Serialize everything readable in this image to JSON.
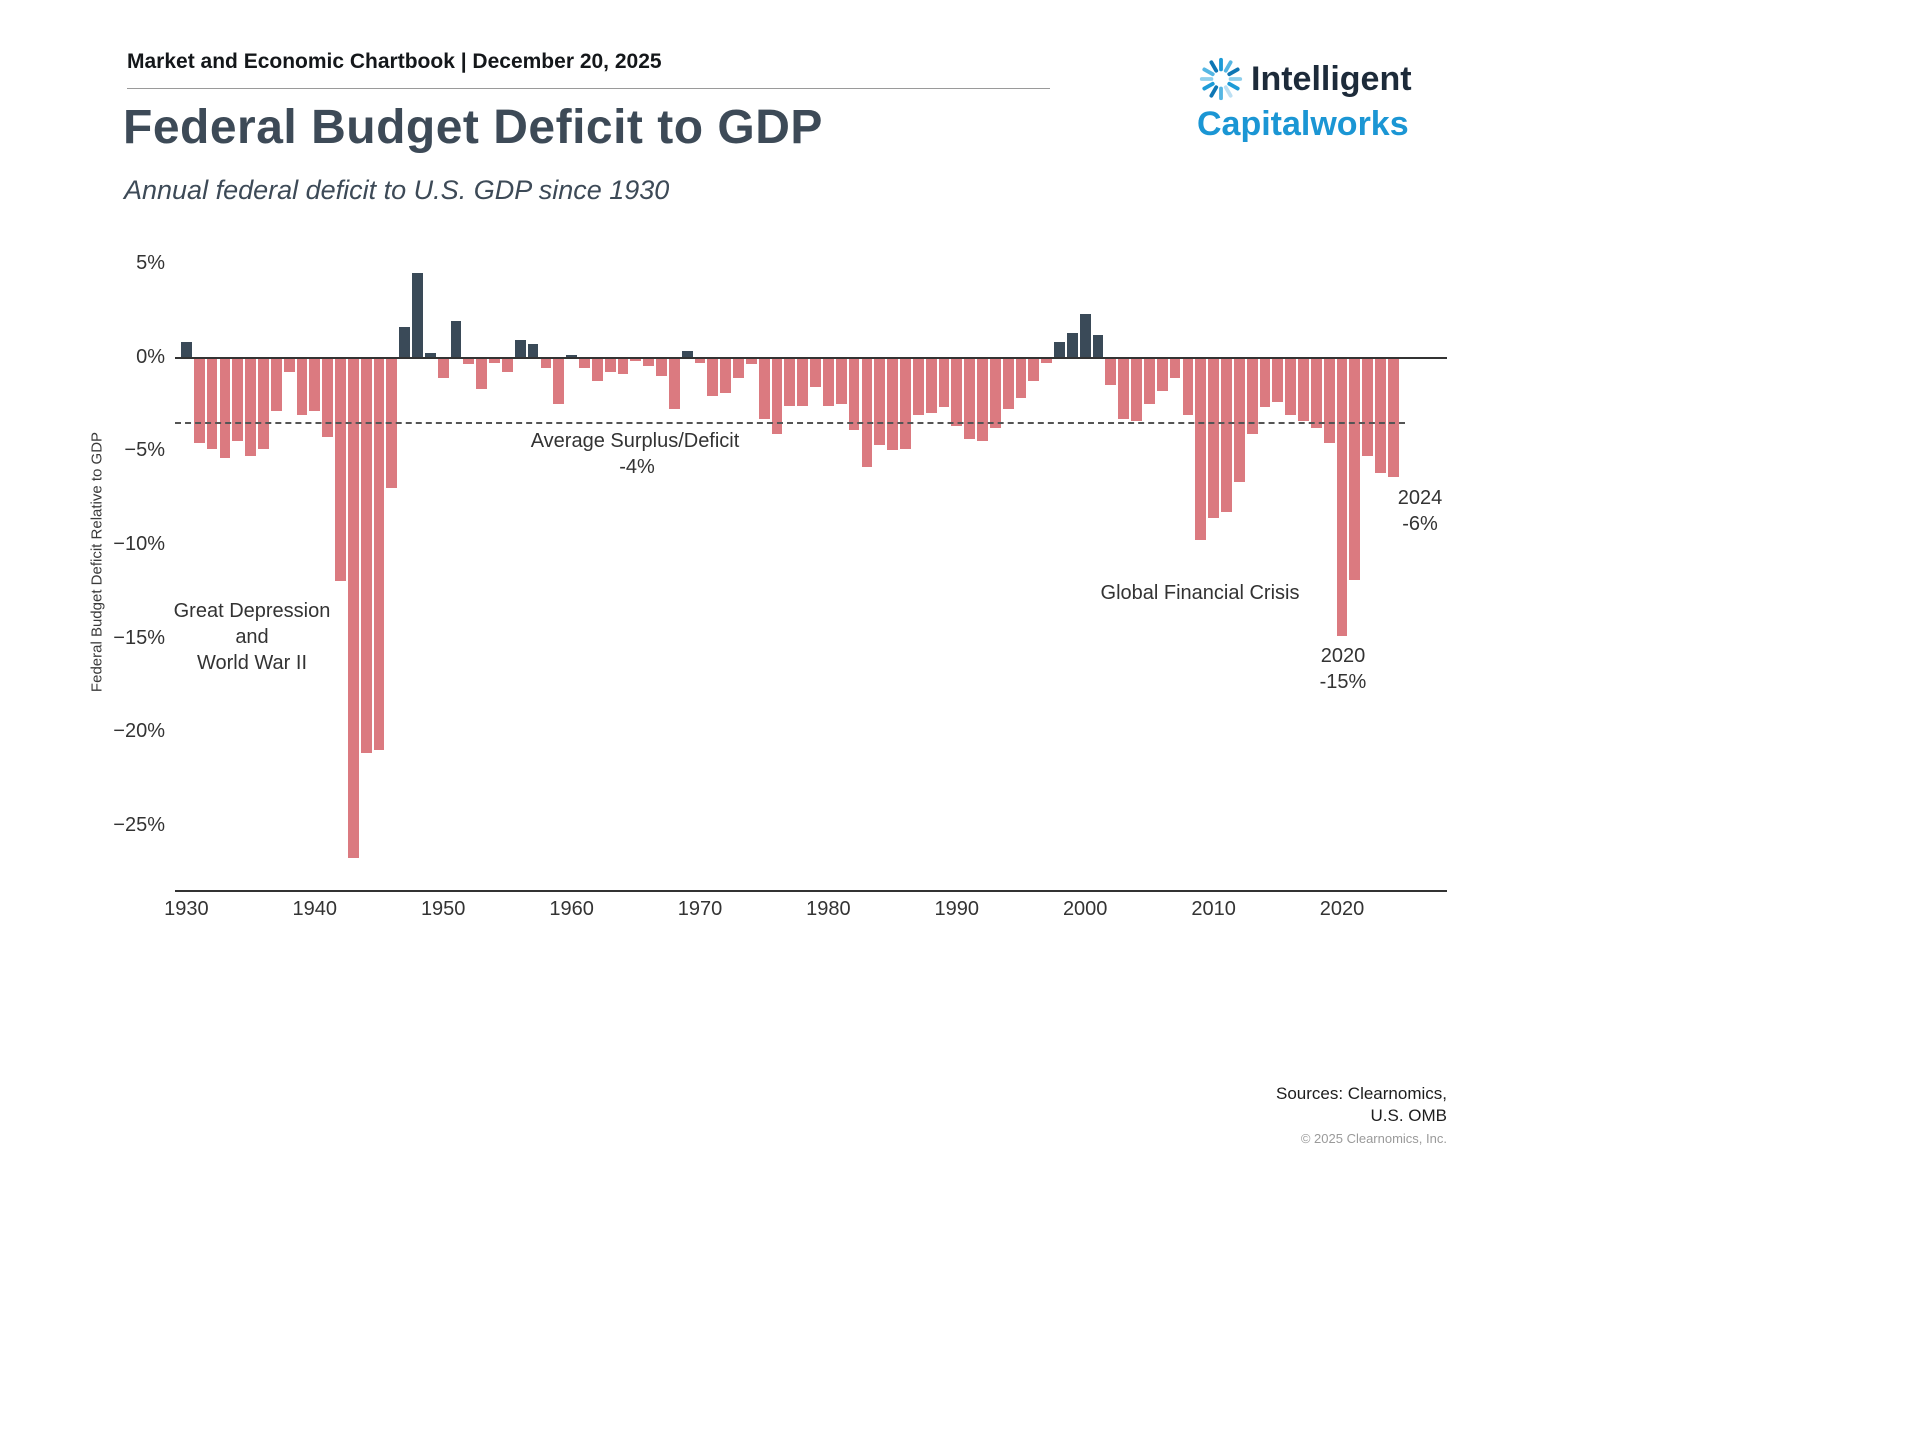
{
  "header": {
    "chartbook": "Market and Economic Chartbook | December 20, 2025",
    "title": "Federal Budget Deficit to GDP",
    "subtitle": "Annual federal deficit to U.S. GDP since 1930"
  },
  "logo": {
    "line1": "Intelligent",
    "line2": "Capitalworks",
    "icon": "starburst-icon"
  },
  "chart_data": {
    "type": "bar",
    "title": "Federal Budget Deficit to GDP",
    "xlabel": "",
    "ylabel": "Federal Budget Deficit Relative to GDP",
    "ylim": [
      -28.5,
      5.56
    ],
    "grid": false,
    "x": [
      1930,
      1931,
      1932,
      1933,
      1934,
      1935,
      1936,
      1937,
      1938,
      1939,
      1940,
      1941,
      1942,
      1943,
      1944,
      1945,
      1946,
      1947,
      1948,
      1949,
      1950,
      1951,
      1952,
      1953,
      1954,
      1955,
      1956,
      1957,
      1958,
      1959,
      1960,
      1961,
      1962,
      1963,
      1964,
      1965,
      1966,
      1967,
      1968,
      1969,
      1970,
      1971,
      1972,
      1973,
      1974,
      1975,
      1976,
      1977,
      1978,
      1979,
      1980,
      1981,
      1982,
      1983,
      1984,
      1985,
      1986,
      1987,
      1988,
      1989,
      1990,
      1991,
      1992,
      1993,
      1994,
      1995,
      1996,
      1997,
      1998,
      1999,
      2000,
      2001,
      2002,
      2003,
      2004,
      2005,
      2006,
      2007,
      2008,
      2009,
      2010,
      2011,
      2012,
      2013,
      2014,
      2015,
      2016,
      2017,
      2018,
      2019,
      2020,
      2021,
      2022,
      2023,
      2024
    ],
    "values": [
      0.8,
      -4.6,
      -4.9,
      -5.4,
      -4.5,
      -5.3,
      -4.9,
      -2.9,
      -0.8,
      -3.1,
      -2.9,
      -4.3,
      -12.0,
      -26.8,
      -21.2,
      -21.0,
      -7.0,
      1.6,
      4.5,
      0.2,
      -1.1,
      1.9,
      -0.4,
      -1.7,
      -0.3,
      -0.8,
      0.9,
      0.7,
      -0.6,
      -2.5,
      0.1,
      -0.6,
      -1.3,
      -0.8,
      -0.9,
      -0.2,
      -0.5,
      -1.0,
      -2.8,
      0.3,
      -0.3,
      -2.1,
      -1.9,
      -1.1,
      -0.4,
      -3.3,
      -4.1,
      -2.6,
      -2.6,
      -1.6,
      -2.6,
      -2.5,
      -3.9,
      -5.9,
      -4.7,
      -5.0,
      -4.9,
      -3.1,
      -3.0,
      -2.7,
      -3.7,
      -4.4,
      -4.5,
      -3.8,
      -2.8,
      -2.2,
      -1.3,
      -0.3,
      0.8,
      1.3,
      2.3,
      1.2,
      -1.5,
      -3.3,
      -3.4,
      -2.5,
      -1.8,
      -1.1,
      -3.1,
      -9.8,
      -8.6,
      -8.3,
      -6.7,
      -4.1,
      -2.7,
      -2.4,
      -3.1,
      -3.4,
      -3.8,
      -4.6,
      -14.9,
      -11.9,
      -5.3,
      -6.2,
      -6.4
    ],
    "y_ticks": [
      {
        "value": 5,
        "label": "5%"
      },
      {
        "value": 0,
        "label": "0%"
      },
      {
        "value": -5,
        "label": "−5%"
      },
      {
        "value": -10,
        "label": "−10%"
      },
      {
        "value": -15,
        "label": "−15%"
      },
      {
        "value": -20,
        "label": "−20%"
      },
      {
        "value": -25,
        "label": "−25%"
      }
    ],
    "x_ticks": [
      "1930",
      "1940",
      "1950",
      "1960",
      "1970",
      "1980",
      "1990",
      "2000",
      "2010",
      "2020"
    ],
    "average_line": {
      "value": -3.5,
      "label": "Average Surplus/Deficit",
      "value_label": "-4%"
    },
    "colors": {
      "deficit": "#DB7A80",
      "surplus": "#3A4A58"
    },
    "annotations": {
      "depression": "Great Depression\nand\nWorld War II",
      "gfc": "Global Financial Crisis",
      "y2020": "2020\n-15%",
      "y2024": "2024\n-6%"
    },
    "legend": "none"
  },
  "footer": {
    "sources_line1": "Sources: Clearnomics,",
    "sources_line2": "U.S. OMB",
    "copyright": "© 2025 Clearnomics, Inc."
  }
}
